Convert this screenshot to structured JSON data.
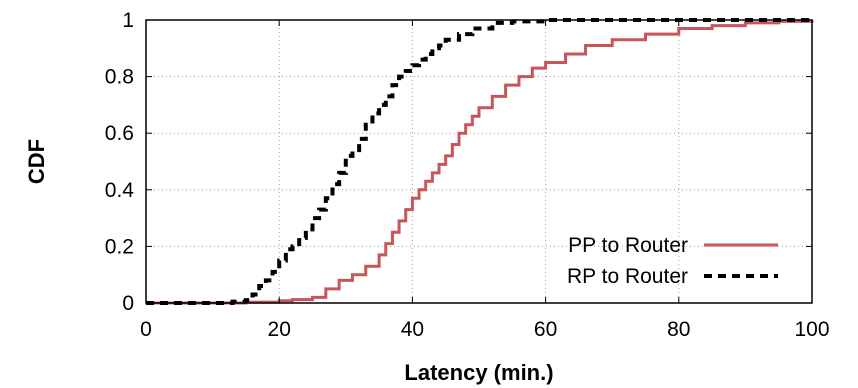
{
  "chart_data": {
    "type": "line",
    "title": "",
    "xlabel": "Latency (min.)",
    "ylabel": "CDF",
    "xlim": [
      0,
      100
    ],
    "ylim": [
      0,
      1
    ],
    "xticks": [
      "0",
      "20",
      "40",
      "60",
      "80",
      "100"
    ],
    "yticks": [
      "0",
      "0.2",
      "0.4",
      "0.6",
      "0.8",
      "1"
    ],
    "grid": true,
    "legend_position": "bottom-right",
    "series": [
      {
        "name": "PP to Router",
        "color": "#c8555a",
        "style": "solid",
        "x": [
          0,
          10,
          15,
          20,
          22,
          25,
          27,
          29,
          31,
          33,
          35,
          36,
          37,
          38,
          39,
          40,
          41,
          42,
          43,
          44,
          45,
          46,
          47,
          48,
          49,
          50,
          52,
          54,
          56,
          58,
          60,
          63,
          66,
          70,
          75,
          80,
          85,
          90,
          95,
          100
        ],
        "y": [
          0,
          0,
          0.003,
          0.008,
          0.012,
          0.02,
          0.05,
          0.08,
          0.1,
          0.13,
          0.17,
          0.21,
          0.25,
          0.29,
          0.33,
          0.37,
          0.4,
          0.43,
          0.46,
          0.49,
          0.52,
          0.56,
          0.6,
          0.63,
          0.66,
          0.69,
          0.73,
          0.77,
          0.8,
          0.83,
          0.85,
          0.88,
          0.91,
          0.93,
          0.95,
          0.97,
          0.98,
          0.99,
          0.995,
          1.0
        ]
      },
      {
        "name": "RP to Router",
        "color": "#000000",
        "style": "dashed",
        "x": [
          0,
          10,
          13,
          15,
          16,
          17,
          18,
          19,
          20,
          21,
          22,
          23,
          24,
          25,
          26,
          27,
          28,
          29,
          30,
          31,
          32,
          33,
          34,
          35,
          36,
          37,
          38,
          39,
          40,
          41,
          42,
          43,
          44,
          45,
          47,
          49,
          52,
          55,
          60,
          65,
          100
        ],
        "y": [
          0,
          0,
          0.005,
          0.01,
          0.03,
          0.06,
          0.08,
          0.11,
          0.15,
          0.19,
          0.2,
          0.23,
          0.26,
          0.3,
          0.33,
          0.37,
          0.42,
          0.46,
          0.52,
          0.54,
          0.58,
          0.63,
          0.67,
          0.7,
          0.73,
          0.77,
          0.8,
          0.82,
          0.84,
          0.86,
          0.88,
          0.9,
          0.91,
          0.93,
          0.95,
          0.97,
          0.99,
          0.995,
          1.0,
          1.0,
          1.0
        ]
      }
    ]
  }
}
